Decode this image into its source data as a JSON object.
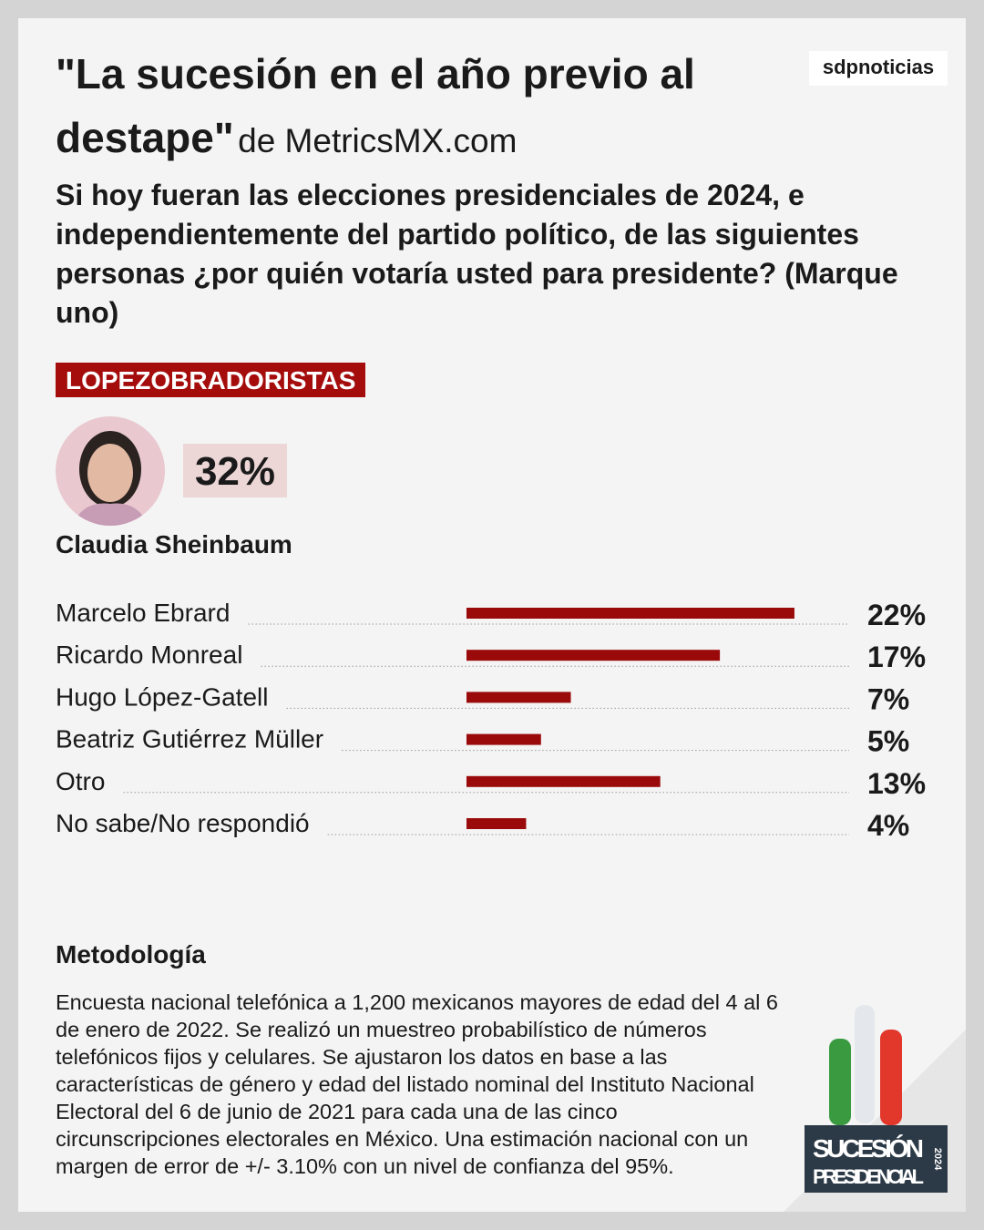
{
  "logo": "sdpnoticias",
  "title": "\"La sucesión en el año previo al destape\"",
  "source": "de MetricsMX.com",
  "question": "Si hoy fueran las elecciones presidenciales de 2024, e independientemente del partido político, de las siguientes personas ¿por quién votaría usted para presidente? (Marque uno)",
  "group": "LOPEZOBRADORISTAS",
  "featured": {
    "name": "Claudia Sheinbaum",
    "value": 32,
    "value_label": "32%"
  },
  "chart_data": {
    "type": "hbar",
    "categories": [
      "Marcelo Ebrard",
      "Ricardo Monreal",
      "Hugo López-Gatell",
      "Beatriz Gutiérrez Müller",
      "Otro",
      "No sabe/No respondió"
    ],
    "values": [
      22,
      17,
      7,
      5,
      13,
      4
    ],
    "value_labels": [
      "22%",
      "17%",
      "7%",
      "5%",
      "13%",
      "4%"
    ],
    "color": "#9b0a0a"
  },
  "methodology": {
    "title": "Metodología",
    "text": "Encuesta nacional telefónica a 1,200 mexicanos mayores de edad del 4 al 6 de enero de 2022. Se realizó un muestreo probabilístico de números telefónicos fijos y celulares. Se ajustaron los datos en base a las características de género y edad del listado nominal del Instituto Nacional Electoral del 6 de junio de 2021 para cada una de las cinco circunscripciones electorales en México. Una estimación nacional con un margen de error de +/- 3.10% con un nivel de confianza del 95%."
  },
  "badge": {
    "line1": "SUCESIÓN",
    "line2": "PRESIDENCIAL",
    "year": "2024"
  }
}
